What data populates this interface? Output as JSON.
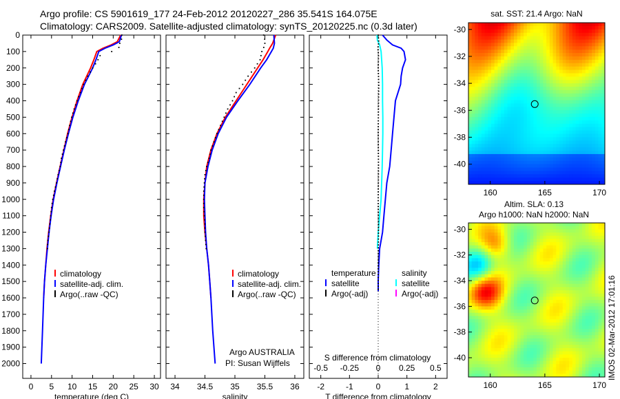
{
  "header": {
    "line1": "Argo profile: CS 5901619_177 24-Feb-2012 20120227_286 35.541S 164.075E",
    "line2": "Climatology: CARS2009. Satellite-adjusted climatology: synTS_20120225.nc (0.3d later)"
  },
  "side_stamp": "IMOS 02-Mar-2012 17:01:16",
  "colors": {
    "clim": "#ff0000",
    "sat": "#0000ff",
    "argo": "#000000",
    "sal_sat": "#00ffff",
    "sal_argo": "#ff00ff"
  },
  "chart_data": [
    {
      "type": "line",
      "id": "temperature",
      "xlabel": "temperature (deg C)",
      "xlim": [
        -2,
        31.5
      ],
      "xticks": [
        0,
        5,
        10,
        15,
        20,
        25,
        30
      ],
      "ylim": [
        2090,
        0
      ],
      "yticks": [
        0,
        100,
        200,
        300,
        400,
        500,
        600,
        700,
        800,
        900,
        1000,
        1100,
        1200,
        1300,
        1400,
        1500,
        1600,
        1700,
        1800,
        1900,
        2000
      ],
      "legend": [
        "climatology",
        "satellite-adj. clim.",
        "Argo(..raw -QC)"
      ],
      "series": [
        {
          "name": "climatology",
          "color": "red",
          "depth": [
            0,
            40,
            60,
            80,
            100,
            150,
            200,
            300,
            400,
            500,
            600,
            700,
            800,
            900,
            1000,
            1100,
            1200,
            1300,
            1400,
            1500,
            1600
          ],
          "values": [
            21.8,
            21,
            19.5,
            17.5,
            16,
            15.3,
            14.5,
            12.6,
            11.2,
            10,
            8.9,
            8,
            7.1,
            6.2,
            5.4,
            4.8,
            4.3,
            3.9,
            3.6,
            3.3,
            3.1
          ]
        },
        {
          "name": "satellite",
          "color": "blue",
          "depth": [
            0,
            40,
            60,
            80,
            100,
            150,
            200,
            300,
            400,
            500,
            600,
            700,
            800,
            900,
            1000,
            1100,
            1200,
            1300,
            1400,
            1500,
            1600,
            1800,
            2000
          ],
          "values": [
            22,
            21.5,
            20,
            18,
            16.5,
            15.8,
            15,
            13,
            11.5,
            10.2,
            9.1,
            8.1,
            7.2,
            6.3,
            5.5,
            4.9,
            4.4,
            4,
            3.6,
            3.3,
            3.1,
            2.8,
            2.5
          ]
        },
        {
          "name": "argo",
          "color": "black",
          "depth": [
            0,
            30,
            50,
            70,
            90,
            120,
            160,
            200,
            250,
            300,
            350,
            400,
            450,
            500,
            550,
            600,
            650,
            700,
            750,
            800,
            850,
            900,
            950,
            1000,
            1050,
            1100,
            1150,
            1200,
            1250,
            1300
          ],
          "values": [
            22.1,
            22,
            21.6,
            21.5,
            21,
            16.9,
            16.1,
            15,
            13.8,
            12.8,
            12,
            11.2,
            10.5,
            9.9,
            9.4,
            9,
            8.4,
            7.9,
            7.4,
            7.1,
            6.6,
            6.2,
            5.7,
            5.3,
            5,
            4.8,
            4.6,
            4.4,
            4.1,
            4
          ]
        }
      ]
    },
    {
      "type": "line",
      "id": "salinity",
      "xlabel": "salinity",
      "xlim": [
        33.85,
        36.15
      ],
      "xticks": [
        34,
        34.5,
        35,
        35.5,
        36
      ],
      "ylim": [
        2090,
        0
      ],
      "legend": [
        "climatology",
        "satellite-adj. clim.",
        "Argo(..raw -QC)"
      ],
      "annotation": [
        "Argo AUSTRALIA",
        "PI: Susan Wijffels"
      ],
      "series": [
        {
          "name": "climatology",
          "color": "red",
          "depth": [
            0,
            50,
            80,
            100,
            150,
            200,
            300,
            400,
            500,
            600,
            700,
            800,
            900,
            1000,
            1100,
            1200,
            1300,
            1400,
            1500,
            1600
          ],
          "values": [
            35.68,
            35.63,
            35.58,
            35.55,
            35.47,
            35.38,
            35.2,
            35.02,
            34.84,
            34.7,
            34.6,
            34.53,
            34.5,
            34.48,
            34.48,
            34.5,
            34.53,
            34.56,
            34.58,
            34.6
          ]
        },
        {
          "name": "satellite",
          "color": "blue",
          "depth": [
            0,
            50,
            80,
            100,
            150,
            200,
            300,
            400,
            500,
            600,
            700,
            800,
            900,
            1000,
            1100,
            1200,
            1300,
            1400,
            1500,
            1600,
            1800,
            2000
          ],
          "values": [
            35.65,
            35.66,
            35.64,
            35.61,
            35.53,
            35.43,
            35.25,
            35.05,
            34.86,
            34.72,
            34.62,
            34.55,
            34.5,
            34.49,
            34.5,
            34.51,
            34.53,
            34.56,
            34.58,
            34.6,
            34.63,
            34.67
          ]
        },
        {
          "name": "argo",
          "color": "black",
          "depth": [
            0,
            30,
            60,
            100,
            150,
            200,
            250,
            300,
            350,
            400,
            450,
            500,
            550,
            600,
            650,
            700,
            750,
            800,
            850,
            900,
            950,
            1000,
            1050,
            1100,
            1150,
            1200,
            1250,
            1300
          ],
          "values": [
            35.48,
            35.5,
            35.5,
            35.45,
            35.42,
            35.33,
            35.22,
            35.13,
            35.02,
            34.96,
            34.88,
            34.82,
            34.76,
            34.7,
            34.65,
            34.6,
            34.57,
            34.53,
            34.5,
            34.49,
            34.48,
            34.48,
            34.48,
            34.49,
            34.5,
            34.5,
            34.51,
            34.52
          ]
        }
      ]
    },
    {
      "type": "line",
      "id": "difference",
      "xlabel": "T difference from climatology",
      "xlabel2": "S difference from climatology",
      "xlim": [
        -2.4,
        2.4
      ],
      "xticks": [
        -2,
        -1,
        0,
        1,
        2
      ],
      "xtick_labels": [
        "-2",
        "-1",
        "0",
        "1",
        "2"
      ],
      "xticks2": [
        -0.5,
        -0.25,
        0,
        0.25,
        0.5
      ],
      "xtick_labels2": [
        "-0.5",
        "-0.25",
        "0",
        "0.25",
        "0.5"
      ],
      "ylim": [
        2090,
        0
      ],
      "legend": {
        "temperature": "temperature",
        "salinity": "salinity",
        "sat": "satellite",
        "argo": "Argo(-adj)"
      },
      "series": [
        {
          "name": "T satellite",
          "color": "blue",
          "depth": [
            0,
            30,
            60,
            80,
            100,
            150,
            200,
            250,
            300,
            400,
            500,
            600,
            700,
            800,
            900,
            1000,
            1100,
            1200,
            1300,
            1400,
            1500,
            1560
          ],
          "values": [
            0.15,
            0.3,
            0.5,
            0.8,
            0.9,
            0.95,
            0.85,
            0.8,
            0.78,
            0.6,
            0.55,
            0.5,
            0.45,
            0.4,
            0.3,
            0.25,
            0.2,
            0.15,
            0.05,
            0.02,
            0,
            0
          ]
        },
        {
          "name": "S satellite",
          "color": "cyan",
          "depth": [
            0,
            30,
            60,
            100,
            150,
            200,
            300,
            400,
            500,
            600,
            700,
            800,
            900,
            1000,
            1100,
            1200,
            1300
          ],
          "values": [
            -0.04,
            -0.03,
            0.05,
            0.1,
            0.12,
            0.14,
            0.15,
            0.15,
            0.16,
            0.16,
            0.15,
            0.14,
            0.12,
            0.1,
            0.05,
            0,
            -0.03
          ]
        },
        {
          "name": "T argo",
          "color": "black",
          "depth": [
            0,
            40,
            80,
            120,
            200,
            300,
            400,
            600,
            800,
            1000,
            1200,
            1400,
            1560
          ],
          "values": [
            0,
            0.02,
            -0.01,
            0.01,
            0,
            0.02,
            0.01,
            0,
            0.01,
            0,
            0.01,
            0,
            0
          ]
        }
      ]
    },
    {
      "type": "heatmap",
      "id": "sst-map",
      "title": "sat. SST: 21.4  Argo: NaN",
      "xlim": [
        158,
        170.5
      ],
      "ylim": [
        -41.5,
        -29.5
      ],
      "xticks": [
        160,
        165,
        170
      ],
      "yticks": [
        -30,
        -32,
        -34,
        -36,
        -38,
        -40
      ],
      "argo_position": {
        "lon": 164.075,
        "lat": -35.541
      }
    },
    {
      "type": "heatmap",
      "id": "sla-map",
      "title": "Altim. SLA: 0.13",
      "title2": "Argo h1000: NaN  h2000: NaN",
      "xlim": [
        158,
        170.5
      ],
      "ylim": [
        -41.5,
        -29.5
      ],
      "xticks": [
        160,
        165,
        170
      ],
      "yticks": [
        -30,
        -32,
        -34,
        -36,
        -38,
        -40
      ],
      "argo_position": {
        "lon": 164.075,
        "lat": -35.541
      }
    }
  ]
}
